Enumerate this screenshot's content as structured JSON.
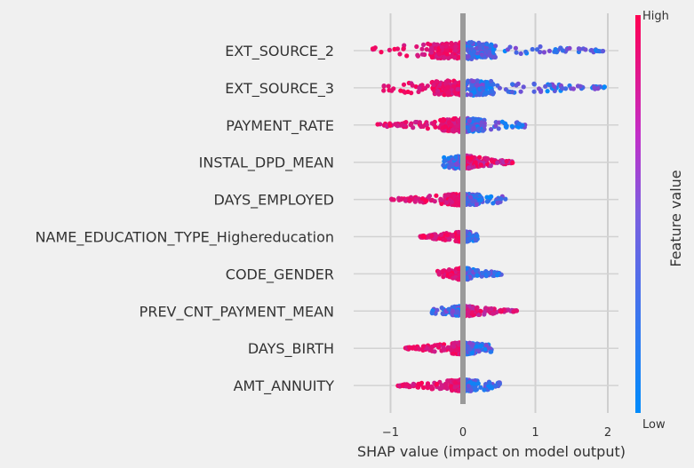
{
  "chart_data": {
    "type": "scatter",
    "subtype": "shap-beeswarm",
    "title": "",
    "xlabel": "SHAP value (impact on model output)",
    "xlim": [
      -1.35,
      2.2
    ],
    "xticks": [
      {
        "value": -1,
        "label": "−1"
      },
      {
        "value": 0,
        "label": "0"
      },
      {
        "value": 1,
        "label": "1"
      },
      {
        "value": 2,
        "label": "2"
      }
    ],
    "grid": true,
    "colorbar": {
      "title": "Feature value",
      "high_label": "High",
      "low_label": "Low",
      "high_color": "#ff0052",
      "low_color": "#008bfb"
    },
    "features": [
      {
        "name": "EXT_SOURCE_2",
        "min": -1.25,
        "max": 1.95,
        "low_side": "high",
        "core_width": 0.9,
        "max_density": 20
      },
      {
        "name": "EXT_SOURCE_3",
        "min": -1.1,
        "max": 2.0,
        "low_side": "high",
        "core_width": 0.85,
        "max_density": 18
      },
      {
        "name": "PAYMENT_RATE",
        "min": -1.2,
        "max": 0.87,
        "low_side": "high",
        "core_width": 0.6,
        "max_density": 16
      },
      {
        "name": "INSTAL_DPD_MEAN",
        "min": -0.3,
        "max": 0.7,
        "low_side": "low",
        "core_width": 0.25,
        "max_density": 16
      },
      {
        "name": "DAYS_EMPLOYED",
        "min": -1.0,
        "max": 0.6,
        "low_side": "high",
        "core_width": 0.5,
        "max_density": 14
      },
      {
        "name": "NAME_EDUCATION_TYPE_Highereducation",
        "min": -0.6,
        "max": 0.2,
        "low_side": "high",
        "core_width": 0.2,
        "max_density": 12
      },
      {
        "name": "CODE_GENDER",
        "min": -0.35,
        "max": 0.55,
        "low_side": "high",
        "core_width": 0.2,
        "max_density": 14
      },
      {
        "name": "PREV_CNT_PAYMENT_MEAN",
        "min": -0.45,
        "max": 0.75,
        "low_side": "low",
        "core_width": 0.3,
        "max_density": 12
      },
      {
        "name": "DAYS_BIRTH",
        "min": -0.8,
        "max": 0.4,
        "low_side": "high",
        "core_width": 0.3,
        "max_density": 14
      },
      {
        "name": "AMT_ANNUITY",
        "min": -0.9,
        "max": 0.55,
        "low_side": "high",
        "core_width": 0.35,
        "max_density": 14
      }
    ]
  }
}
